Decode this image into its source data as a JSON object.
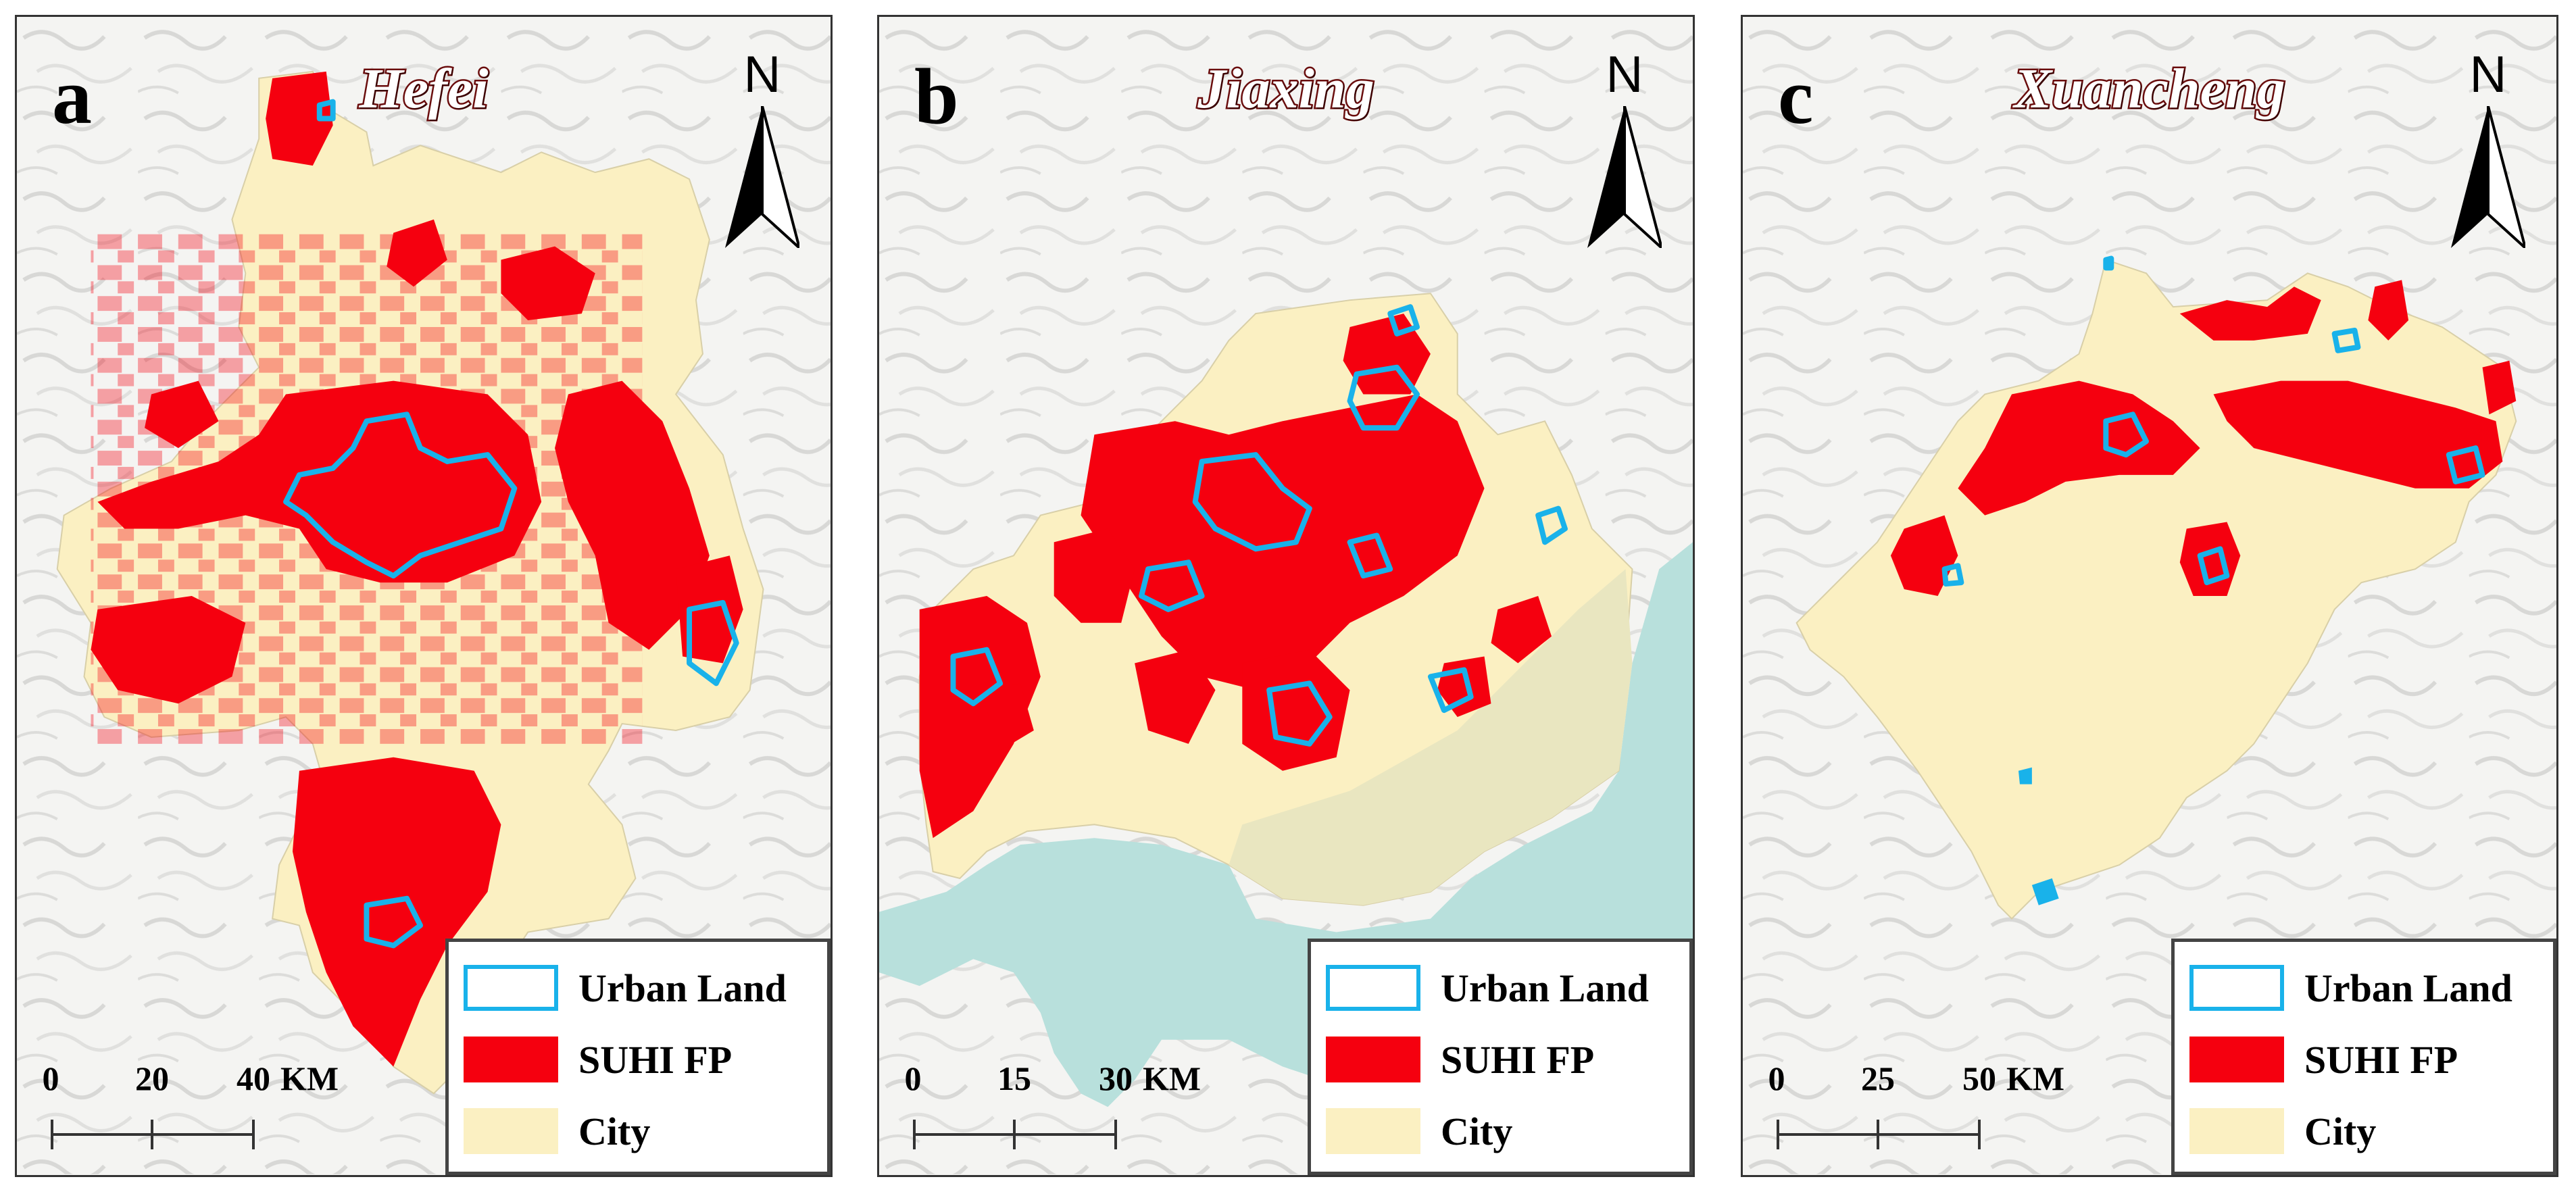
{
  "legend": {
    "urban": "Urban Land",
    "suhi": "SUHI FP",
    "city": "City"
  },
  "colors": {
    "urban_land": "#19b2ea",
    "suhi_fp": "#f5000f",
    "city": "#fbf0c2",
    "water": "#b8e0dc",
    "title_outline": "#6a0d0d"
  },
  "panels": [
    {
      "label": "a",
      "title": "Hefei",
      "north": "N",
      "scale": {
        "ticks": [
          "0",
          "20",
          "40"
        ],
        "unit": "KM"
      }
    },
    {
      "label": "b",
      "title": "Jiaxing",
      "north": "N",
      "scale": {
        "ticks": [
          "0",
          "15",
          "30"
        ],
        "unit": "KM"
      }
    },
    {
      "label": "c",
      "title": "Xuancheng",
      "north": "N",
      "scale": {
        "ticks": [
          "0",
          "25",
          "50"
        ],
        "unit": "KM"
      }
    }
  ]
}
